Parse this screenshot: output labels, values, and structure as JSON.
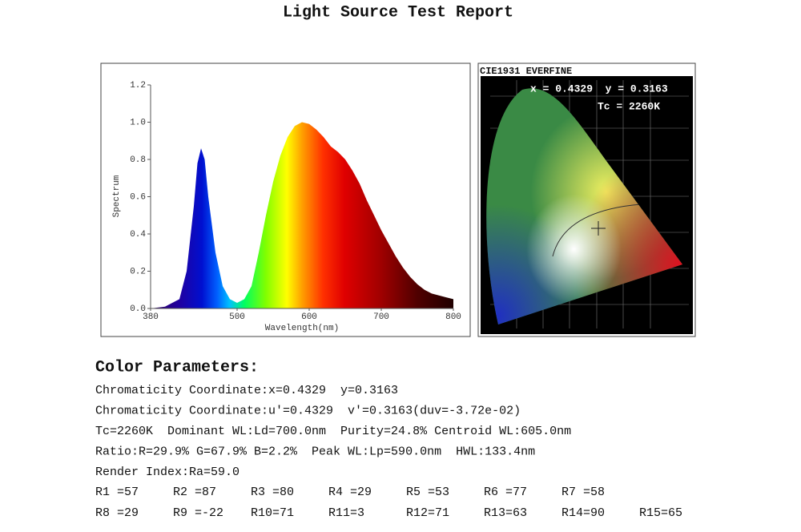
{
  "title": "Light Source Test Report",
  "chart_data": {
    "type": "area",
    "y_label": "Spectrum",
    "x_label": "Wavelength(nm)",
    "x": [
      380,
      400,
      420,
      430,
      440,
      445,
      450,
      455,
      460,
      470,
      480,
      490,
      500,
      510,
      520,
      530,
      540,
      550,
      560,
      570,
      580,
      590,
      600,
      610,
      620,
      630,
      640,
      650,
      660,
      670,
      680,
      690,
      700,
      710,
      720,
      730,
      740,
      750,
      760,
      770,
      780,
      790,
      800
    ],
    "values": [
      0.0,
      0.01,
      0.05,
      0.2,
      0.55,
      0.78,
      0.86,
      0.8,
      0.6,
      0.3,
      0.12,
      0.05,
      0.03,
      0.05,
      0.12,
      0.3,
      0.5,
      0.68,
      0.82,
      0.92,
      0.98,
      1.0,
      0.99,
      0.96,
      0.92,
      0.87,
      0.84,
      0.8,
      0.74,
      0.67,
      0.58,
      0.5,
      0.42,
      0.35,
      0.28,
      0.22,
      0.17,
      0.13,
      0.1,
      0.08,
      0.07,
      0.06,
      0.05
    ],
    "xlim": [
      380,
      800
    ],
    "ylim": [
      0,
      1.2
    ],
    "xticks": [
      380,
      500,
      600,
      700,
      800
    ],
    "yticks": [
      {
        "value": 0,
        "label": "0.0"
      },
      0.2,
      0.4,
      0.6,
      0.8,
      {
        "value": 1,
        "label": "1.0"
      },
      1.2
    ]
  },
  "cie": {
    "title": "CIE1931 EVERFINE",
    "coordinates": "x = 0.4329  y = 0.3163",
    "tc": "Tc = 2260K"
  },
  "parameters": {
    "heading": "Color Parameters:",
    "lines": [
      "Chromaticity Coordinate:x=0.4329  y=0.3163",
      "Chromaticity Coordinate:u'=0.4329  v'=0.3163(duv=-3.72e-02)",
      "Tc=2260K  Dominant WL:Ld=700.0nm  Purity=24.8% Centroid WL:605.0nm",
      "Ratio:R=29.9% G=67.9% B=2.2%  Peak WL:Lp=590.0nm  HWL:133.4nm",
      "Render Index:Ra=59.0"
    ],
    "render_rows": [
      [
        "R1 =57",
        "R2 =87",
        "R3 =80",
        "R4 =29",
        "R5 =53",
        "R6 =77",
        "R7 =58"
      ],
      [
        "R8 =29",
        "R9 =-22",
        "R10=71",
        "R11=3",
        "R12=71",
        "R13=63",
        "R14=90",
        "R15=65"
      ]
    ]
  }
}
